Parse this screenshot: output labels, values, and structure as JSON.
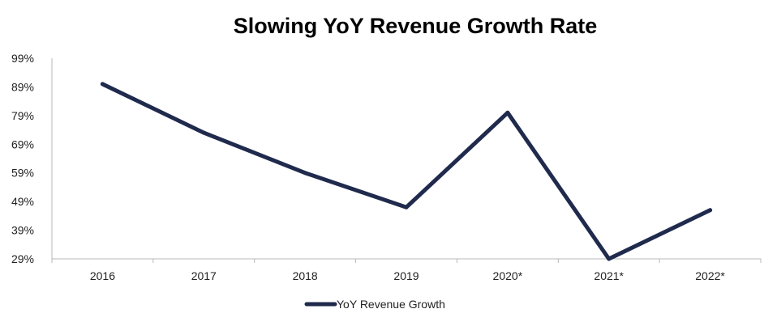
{
  "chart_data": {
    "type": "line",
    "title": "Slowing YoY Revenue Growth Rate",
    "xlabel": "",
    "ylabel": "",
    "categories": [
      "2016",
      "2017",
      "2018",
      "2019",
      "2020*",
      "2021*",
      "2022*"
    ],
    "y_ticks": [
      "99%",
      "89%",
      "79%",
      "69%",
      "59%",
      "49%",
      "39%",
      "29%"
    ],
    "ylim": [
      29,
      99
    ],
    "grid": false,
    "legend": "bottom",
    "series": [
      {
        "name": "YoY Revenue Growth",
        "color": "#1f2a4d",
        "values": [
          90,
          73,
          59,
          47,
          80,
          29,
          46
        ]
      }
    ]
  }
}
